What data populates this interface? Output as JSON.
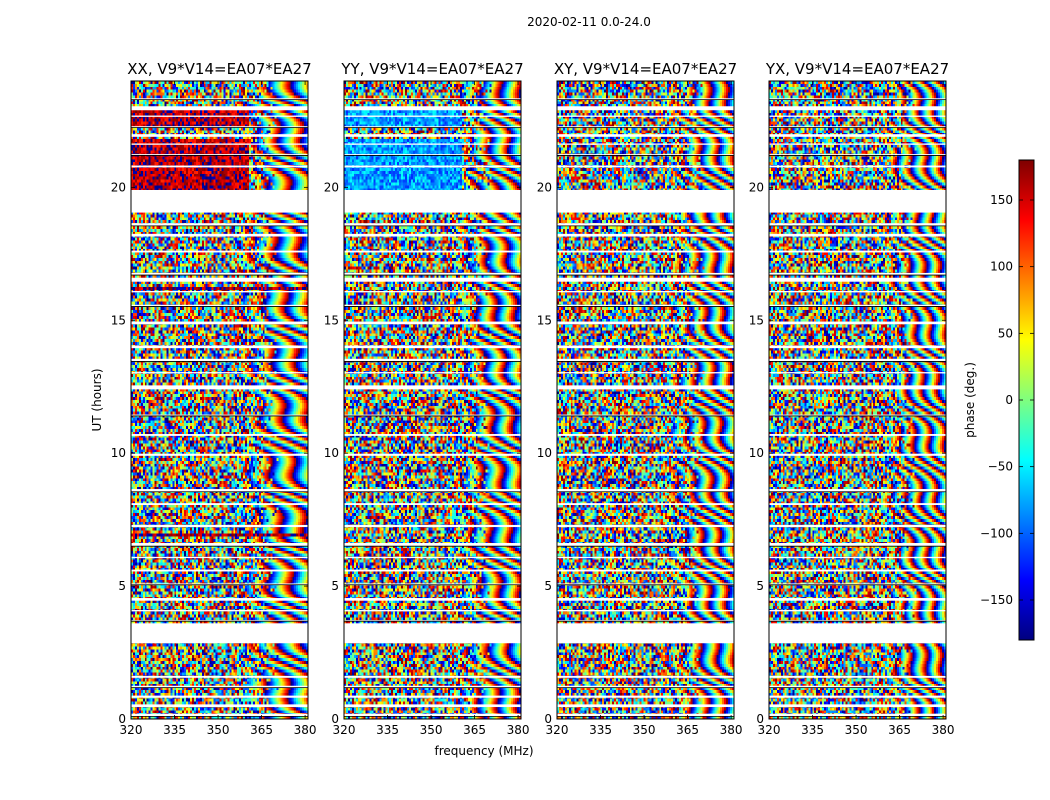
{
  "figure": {
    "suptitle": "2020-02-11 0.0-24.0",
    "ylabel": "UT (hours)",
    "xlabel": "frequency (MHz)"
  },
  "colorbar": {
    "label": "phase (deg.)",
    "range": [
      -180,
      180
    ],
    "ticks": [
      -150,
      -100,
      -50,
      0,
      50,
      100,
      150
    ],
    "tick_labels": [
      "−150",
      "−100",
      "−50",
      "0",
      "50",
      "100",
      "150"
    ],
    "colormap": [
      "#00007f",
      "#0000ff",
      "#007fff",
      "#00ffff",
      "#7fff7f",
      "#ffff00",
      "#ff7f00",
      "#ff0000",
      "#7f0000"
    ]
  },
  "chart_data": [
    {
      "type": "heatmap",
      "title": "XX, V9*V14=EA07*EA27",
      "xlabel": "frequency (MHz)",
      "ylabel": "UT (hours)",
      "xlim": [
        320,
        381
      ],
      "ylim": [
        0,
        24
      ],
      "xticks": [
        320,
        335,
        350,
        365,
        380
      ],
      "yticks": [
        0,
        5,
        10,
        15,
        20
      ],
      "value_range": [
        -180,
        180
      ],
      "value_label": "phase (deg.)",
      "data_gaps_hours": [
        [
          0.1,
          0.2
        ],
        [
          0.45,
          0.55
        ],
        [
          0.8,
          0.88
        ],
        [
          1.18,
          1.25
        ],
        [
          1.55,
          1.62
        ],
        [
          2.85,
          3.6
        ],
        [
          3.68,
          3.72
        ],
        [
          4.05,
          4.1
        ],
        [
          4.45,
          4.55
        ],
        [
          5.05,
          5.1
        ],
        [
          5.55,
          5.62
        ],
        [
          6.05,
          6.1
        ],
        [
          6.5,
          6.62
        ],
        [
          7.22,
          7.3
        ],
        [
          8.05,
          8.12
        ],
        [
          8.55,
          8.65
        ],
        [
          9.9,
          9.98
        ],
        [
          10.65,
          10.72
        ],
        [
          11.4,
          11.45
        ],
        [
          12.4,
          12.55
        ],
        [
          13.0,
          13.05
        ],
        [
          13.45,
          13.55
        ],
        [
          13.95,
          14.05
        ],
        [
          14.85,
          14.95
        ],
        [
          15.52,
          15.58
        ],
        [
          16.05,
          16.1
        ],
        [
          16.45,
          16.6
        ],
        [
          16.7,
          16.78
        ],
        [
          17.55,
          17.62
        ],
        [
          18.15,
          18.25
        ],
        [
          18.55,
          18.65
        ],
        [
          19.05,
          19.9
        ],
        [
          20.75,
          20.82
        ],
        [
          21.2,
          21.25
        ],
        [
          21.6,
          21.65
        ],
        [
          21.9,
          22.0
        ],
        [
          22.25,
          22.3
        ],
        [
          22.65,
          22.7
        ],
        [
          22.9,
          23.05
        ],
        [
          23.3,
          23.35
        ]
      ],
      "banded_regions": [
        {
          "t_hours": [
            19.9,
            21.8
          ],
          "freq_mhz": [
            320,
            361
          ],
          "dominant_phase_deg": 160
        },
        {
          "t_hours": [
            22.3,
            23.0
          ],
          "freq_mhz": [
            320,
            361
          ],
          "dominant_phase_deg": 160
        },
        {
          "t_hours": [
            6.85,
            7.0
          ],
          "freq_mhz": [
            320,
            381
          ],
          "dominant_phase_deg": 170
        },
        {
          "t_hours": [
            1.5,
            1.55
          ],
          "freq_mhz": [
            320,
            381
          ],
          "dominant_phase_deg": 170
        },
        {
          "t_hours": [
            16.15,
            16.25
          ],
          "freq_mhz": [
            320,
            381
          ],
          "dominant_phase_deg": 170
        }
      ],
      "note": "phase noise at low frequencies, dense fringe (wrapping) pattern above ~355 MHz"
    },
    {
      "type": "heatmap",
      "title": "YY, V9*V14=EA07*EA27",
      "xlabel": "frequency (MHz)",
      "ylabel": "UT (hours)",
      "xlim": [
        320,
        381
      ],
      "ylim": [
        0,
        24
      ],
      "xticks": [
        320,
        335,
        350,
        365,
        380
      ],
      "yticks": [
        0,
        5,
        10,
        15,
        20
      ],
      "value_range": [
        -180,
        180
      ],
      "value_label": "phase (deg.)",
      "data_gaps_hours": [
        [
          0.1,
          0.2
        ],
        [
          0.45,
          0.55
        ],
        [
          0.8,
          0.88
        ],
        [
          1.18,
          1.25
        ],
        [
          1.55,
          1.62
        ],
        [
          2.85,
          3.6
        ],
        [
          3.68,
          3.72
        ],
        [
          4.05,
          4.1
        ],
        [
          4.45,
          4.55
        ],
        [
          5.05,
          5.1
        ],
        [
          5.55,
          5.62
        ],
        [
          6.05,
          6.1
        ],
        [
          6.5,
          6.62
        ],
        [
          7.22,
          7.3
        ],
        [
          8.05,
          8.12
        ],
        [
          8.55,
          8.65
        ],
        [
          9.9,
          9.98
        ],
        [
          10.65,
          10.72
        ],
        [
          11.4,
          11.45
        ],
        [
          12.4,
          12.55
        ],
        [
          13.0,
          13.05
        ],
        [
          13.45,
          13.55
        ],
        [
          13.95,
          14.05
        ],
        [
          14.85,
          14.95
        ],
        [
          15.52,
          15.58
        ],
        [
          16.05,
          16.1
        ],
        [
          16.45,
          16.6
        ],
        [
          16.7,
          16.78
        ],
        [
          17.55,
          17.62
        ],
        [
          18.15,
          18.25
        ],
        [
          18.55,
          18.65
        ],
        [
          19.05,
          19.9
        ],
        [
          20.75,
          20.82
        ],
        [
          21.2,
          21.25
        ],
        [
          21.6,
          21.65
        ],
        [
          21.9,
          22.0
        ],
        [
          22.25,
          22.3
        ],
        [
          22.65,
          22.7
        ],
        [
          22.9,
          23.05
        ],
        [
          23.3,
          23.35
        ]
      ],
      "banded_regions": [
        {
          "t_hours": [
            19.9,
            21.8
          ],
          "freq_mhz": [
            320,
            361
          ],
          "dominant_phase_deg": -80
        },
        {
          "t_hours": [
            22.3,
            23.0
          ],
          "freq_mhz": [
            320,
            361
          ],
          "dominant_phase_deg": -80
        }
      ],
      "note": "phase noise at low frequencies, dense fringe (wrapping) pattern above ~355 MHz"
    },
    {
      "type": "heatmap",
      "title": "XY, V9*V14=EA07*EA27",
      "xlabel": "frequency (MHz)",
      "ylabel": "UT (hours)",
      "xlim": [
        320,
        381
      ],
      "ylim": [
        0,
        24
      ],
      "xticks": [
        320,
        335,
        350,
        365,
        380
      ],
      "yticks": [
        0,
        5,
        10,
        15,
        20
      ],
      "value_range": [
        -180,
        180
      ],
      "value_label": "phase (deg.)",
      "data_gaps_hours": [
        [
          0.1,
          0.2
        ],
        [
          0.45,
          0.55
        ],
        [
          0.8,
          0.88
        ],
        [
          1.18,
          1.25
        ],
        [
          1.55,
          1.62
        ],
        [
          2.85,
          3.6
        ],
        [
          3.68,
          3.72
        ],
        [
          4.05,
          4.1
        ],
        [
          4.45,
          4.55
        ],
        [
          5.05,
          5.1
        ],
        [
          5.55,
          5.62
        ],
        [
          6.05,
          6.1
        ],
        [
          6.5,
          6.62
        ],
        [
          7.22,
          7.3
        ],
        [
          8.05,
          8.12
        ],
        [
          8.55,
          8.65
        ],
        [
          9.9,
          9.98
        ],
        [
          10.65,
          10.72
        ],
        [
          11.4,
          11.45
        ],
        [
          12.4,
          12.55
        ],
        [
          13.0,
          13.05
        ],
        [
          13.45,
          13.55
        ],
        [
          13.95,
          14.05
        ],
        [
          14.85,
          14.95
        ],
        [
          15.52,
          15.58
        ],
        [
          16.05,
          16.1
        ],
        [
          16.45,
          16.6
        ],
        [
          16.7,
          16.78
        ],
        [
          17.55,
          17.62
        ],
        [
          18.15,
          18.25
        ],
        [
          18.55,
          18.65
        ],
        [
          19.05,
          19.9
        ],
        [
          20.75,
          20.82
        ],
        [
          21.2,
          21.25
        ],
        [
          21.6,
          21.65
        ],
        [
          21.9,
          22.0
        ],
        [
          22.25,
          22.3
        ],
        [
          22.65,
          22.7
        ],
        [
          22.9,
          23.05
        ],
        [
          23.3,
          23.35
        ]
      ],
      "banded_regions": [],
      "note": "mostly noise-like phase with fringes at high frequencies"
    },
    {
      "type": "heatmap",
      "title": "YX, V9*V14=EA07*EA27",
      "xlabel": "frequency (MHz)",
      "ylabel": "UT (hours)",
      "xlim": [
        320,
        381
      ],
      "ylim": [
        0,
        24
      ],
      "xticks": [
        320,
        335,
        350,
        365,
        380
      ],
      "yticks": [
        0,
        5,
        10,
        15,
        20
      ],
      "value_range": [
        -180,
        180
      ],
      "value_label": "phase (deg.)",
      "data_gaps_hours": [
        [
          0.1,
          0.2
        ],
        [
          0.45,
          0.55
        ],
        [
          0.8,
          0.88
        ],
        [
          1.18,
          1.25
        ],
        [
          1.55,
          1.62
        ],
        [
          2.85,
          3.6
        ],
        [
          3.68,
          3.72
        ],
        [
          4.05,
          4.1
        ],
        [
          4.45,
          4.55
        ],
        [
          5.05,
          5.1
        ],
        [
          5.55,
          5.62
        ],
        [
          6.05,
          6.1
        ],
        [
          6.5,
          6.62
        ],
        [
          7.22,
          7.3
        ],
        [
          8.05,
          8.12
        ],
        [
          8.55,
          8.65
        ],
        [
          9.9,
          9.98
        ],
        [
          10.65,
          10.72
        ],
        [
          11.4,
          11.45
        ],
        [
          12.4,
          12.55
        ],
        [
          13.0,
          13.05
        ],
        [
          13.45,
          13.55
        ],
        [
          13.95,
          14.05
        ],
        [
          14.85,
          14.95
        ],
        [
          15.52,
          15.58
        ],
        [
          16.05,
          16.1
        ],
        [
          16.45,
          16.6
        ],
        [
          16.7,
          16.78
        ],
        [
          17.55,
          17.62
        ],
        [
          18.15,
          18.25
        ],
        [
          18.55,
          18.65
        ],
        [
          19.05,
          19.9
        ],
        [
          20.75,
          20.82
        ],
        [
          21.2,
          21.25
        ],
        [
          21.6,
          21.65
        ],
        [
          21.9,
          22.0
        ],
        [
          22.25,
          22.3
        ],
        [
          22.65,
          22.7
        ],
        [
          22.9,
          23.05
        ],
        [
          23.3,
          23.35
        ]
      ],
      "banded_regions": [],
      "note": "mostly noise-like phase with fringes at high frequencies"
    }
  ]
}
